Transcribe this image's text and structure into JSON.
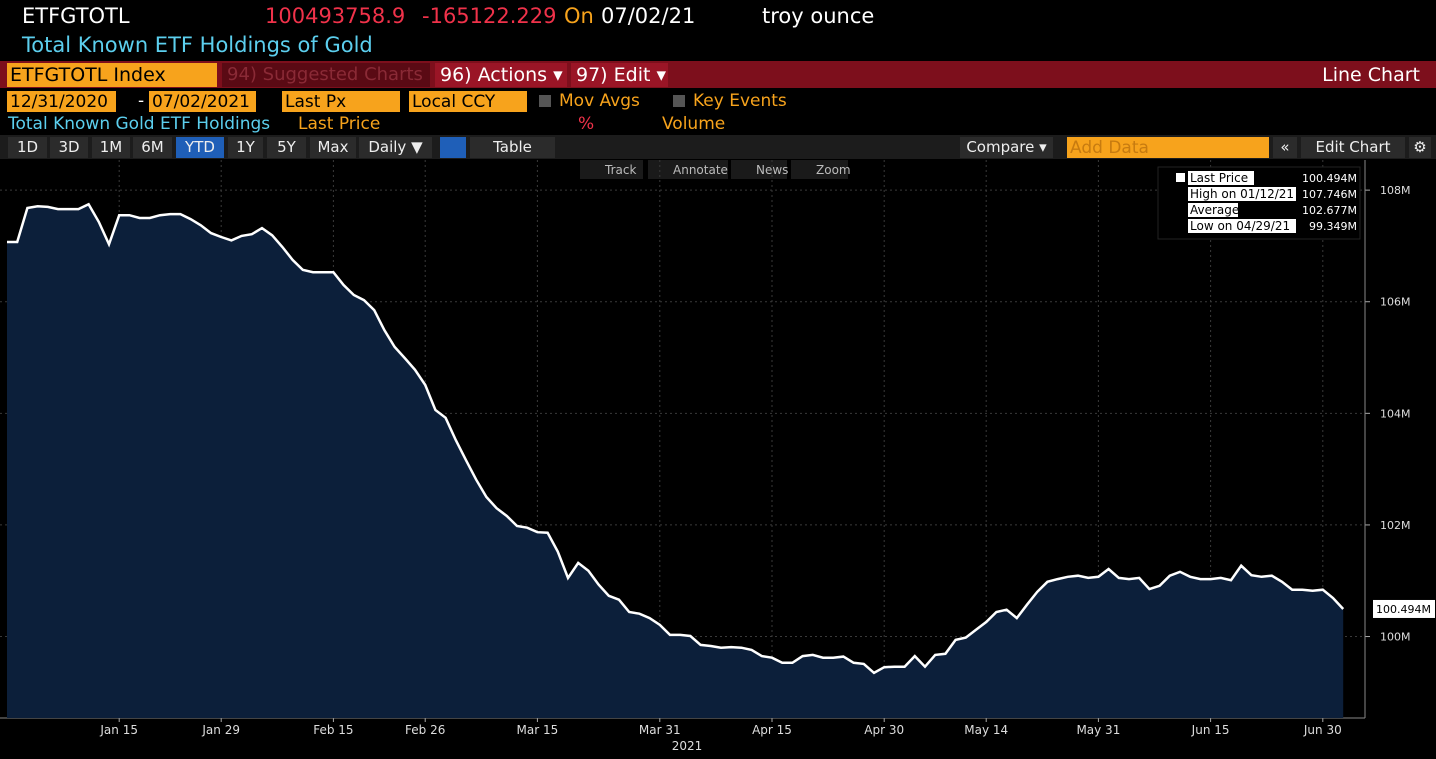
{
  "header": {
    "ticker": "ETFGTOTL",
    "price": "100493758.9",
    "change": "-165122.229",
    "on": "On",
    "date": "07/02/21",
    "unit": "troy ounce",
    "name": "Total Known ETF Holdings of Gold"
  },
  "menu": {
    "security": "ETFGTOTL Index",
    "suggested": "94) Suggested Charts",
    "actions": "96) Actions ▾",
    "edit": "97) Edit ▾",
    "chart_type": "Line Chart"
  },
  "controls": {
    "start": "12/31/2020",
    "dash": "-",
    "end": "07/02/2021",
    "field": "Last Px",
    "currency": "Local CCY",
    "mov_avgs": "Mov Avgs",
    "key_events": "Key Events"
  },
  "series_header": {
    "name": "Total Known Gold ETF Holdings",
    "last_price": "Last Price",
    "pct": "%",
    "volume": "Volume"
  },
  "toolbar": {
    "periods": [
      "1D",
      "3D",
      "1M",
      "6M",
      "YTD",
      "1Y",
      "5Y",
      "Max"
    ],
    "frequency": "Daily ▼",
    "table": "Table",
    "compare": "Compare ▾",
    "add_data": "Add Data",
    "edit_chart": "Edit Chart"
  },
  "chart_tools": [
    "Track",
    "Annotate",
    "News",
    "Zoom"
  ],
  "chart_data": {
    "type": "line",
    "x": [
      "2020-12-31",
      "2021-01-01",
      "2021-01-04",
      "2021-01-05",
      "2021-01-06",
      "2021-01-07",
      "2021-01-08",
      "2021-01-11",
      "2021-01-12",
      "2021-01-13",
      "2021-01-14",
      "2021-01-15",
      "2021-01-18",
      "2021-01-19",
      "2021-01-20",
      "2021-01-21",
      "2021-01-22",
      "2021-01-25",
      "2021-01-26",
      "2021-01-27",
      "2021-01-28",
      "2021-01-29",
      "2021-02-01",
      "2021-02-02",
      "2021-02-03",
      "2021-02-04",
      "2021-02-05",
      "2021-02-08",
      "2021-02-09",
      "2021-02-10",
      "2021-02-11",
      "2021-02-12",
      "2021-02-15",
      "2021-02-16",
      "2021-02-17",
      "2021-02-18",
      "2021-02-19",
      "2021-02-22",
      "2021-02-23",
      "2021-02-24",
      "2021-02-25",
      "2021-02-26",
      "2021-03-01",
      "2021-03-02",
      "2021-03-03",
      "2021-03-04",
      "2021-03-05",
      "2021-03-08",
      "2021-03-09",
      "2021-03-10",
      "2021-03-11",
      "2021-03-12",
      "2021-03-15",
      "2021-03-16",
      "2021-03-17",
      "2021-03-18",
      "2021-03-19",
      "2021-03-22",
      "2021-03-23",
      "2021-03-24",
      "2021-03-25",
      "2021-03-26",
      "2021-03-29",
      "2021-03-30",
      "2021-03-31",
      "2021-04-01",
      "2021-04-02",
      "2021-04-05",
      "2021-04-06",
      "2021-04-07",
      "2021-04-08",
      "2021-04-09",
      "2021-04-12",
      "2021-04-13",
      "2021-04-14",
      "2021-04-15",
      "2021-04-16",
      "2021-04-19",
      "2021-04-20",
      "2021-04-21",
      "2021-04-22",
      "2021-04-23",
      "2021-04-26",
      "2021-04-27",
      "2021-04-28",
      "2021-04-29",
      "2021-04-30",
      "2021-05-03",
      "2021-05-04",
      "2021-05-05",
      "2021-05-06",
      "2021-05-07",
      "2021-05-10",
      "2021-05-11",
      "2021-05-12",
      "2021-05-13",
      "2021-05-14",
      "2021-05-17",
      "2021-05-18",
      "2021-05-19",
      "2021-05-20",
      "2021-05-21",
      "2021-05-24",
      "2021-05-25",
      "2021-05-26",
      "2021-05-27",
      "2021-05-28",
      "2021-05-31",
      "2021-06-01",
      "2021-06-02",
      "2021-06-03",
      "2021-06-04",
      "2021-06-07",
      "2021-06-08",
      "2021-06-09",
      "2021-06-10",
      "2021-06-11",
      "2021-06-14",
      "2021-06-15",
      "2021-06-16",
      "2021-06-17",
      "2021-06-18",
      "2021-06-21",
      "2021-06-22",
      "2021-06-23",
      "2021-06-24",
      "2021-06-25",
      "2021-06-28",
      "2021-06-29",
      "2021-06-30",
      "2021-07-01",
      "2021-07-02"
    ],
    "series": [
      {
        "name": "Last Price",
        "color": "#ffffff",
        "fill": "#0c1f3a",
        "last_label": "100.494M",
        "values": [
          107.07,
          107.07,
          107.68,
          107.71,
          107.7,
          107.66,
          107.66,
          107.66,
          107.746,
          107.43,
          107.03,
          107.55,
          107.55,
          107.5,
          107.5,
          107.55,
          107.57,
          107.57,
          107.48,
          107.37,
          107.23,
          107.16,
          107.1,
          107.18,
          107.21,
          107.32,
          107.19,
          106.98,
          106.75,
          106.57,
          106.53,
          106.53,
          106.53,
          106.3,
          106.12,
          106.03,
          105.85,
          105.49,
          105.19,
          104.99,
          104.78,
          104.51,
          104.06,
          103.92,
          103.52,
          103.16,
          102.81,
          102.5,
          102.3,
          102.16,
          101.98,
          101.95,
          101.87,
          101.86,
          101.52,
          101.05,
          101.32,
          101.18,
          100.93,
          100.73,
          100.66,
          100.44,
          100.41,
          100.33,
          100.21,
          100.03,
          100.03,
          100.01,
          99.85,
          99.83,
          99.8,
          99.81,
          99.8,
          99.76,
          99.65,
          99.62,
          99.53,
          99.53,
          99.65,
          99.67,
          99.62,
          99.62,
          99.64,
          99.53,
          99.51,
          99.349,
          99.45,
          99.46,
          99.46,
          99.65,
          99.46,
          99.67,
          99.69,
          99.94,
          99.98,
          100.12,
          100.26,
          100.44,
          100.48,
          100.33,
          100.57,
          100.8,
          100.98,
          101.03,
          101.07,
          101.09,
          101.05,
          101.07,
          101.21,
          101.05,
          101.03,
          101.05,
          100.85,
          100.91,
          101.09,
          101.16,
          101.07,
          101.03,
          101.03,
          101.05,
          101.01,
          101.27,
          101.1,
          101.07,
          101.09,
          100.98,
          100.84,
          100.84,
          100.82,
          100.84,
          100.69,
          100.494
        ]
      }
    ],
    "xticks": [
      {
        "value": "2021-01-15",
        "label": "Jan 15"
      },
      {
        "value": "2021-01-29",
        "label": "Jan 29"
      },
      {
        "value": "2021-02-15",
        "label": "Feb 15"
      },
      {
        "value": "2021-02-26",
        "label": "Feb 26"
      },
      {
        "value": "2021-03-15",
        "label": "Mar 15"
      },
      {
        "value": "2021-03-31",
        "label": "Mar 31"
      },
      {
        "value": "2021-04-15",
        "label": "Apr 15"
      },
      {
        "value": "2021-04-30",
        "label": "Apr 30"
      },
      {
        "value": "2021-05-14",
        "label": "May 14"
      },
      {
        "value": "2021-05-31",
        "label": "May 31"
      },
      {
        "value": "2021-06-15",
        "label": "Jun 15"
      },
      {
        "value": "2021-06-30",
        "label": "Jun 30"
      }
    ],
    "x_year_label": "2021",
    "ylim": [
      98.54,
      108.54
    ],
    "yticks": [
      {
        "value": 100,
        "label": "100M"
      },
      {
        "value": 102,
        "label": "102M"
      },
      {
        "value": 104,
        "label": "104M"
      },
      {
        "value": 106,
        "label": "106M"
      },
      {
        "value": 108,
        "label": "108M"
      }
    ],
    "grid": true,
    "legend": [
      {
        "label": "High on 01/12/21",
        "value": "107.746M"
      },
      {
        "label": "Average",
        "value": "102.677M"
      },
      {
        "label": "Low on 04/29/21",
        "value": "99.349M"
      }
    ]
  }
}
